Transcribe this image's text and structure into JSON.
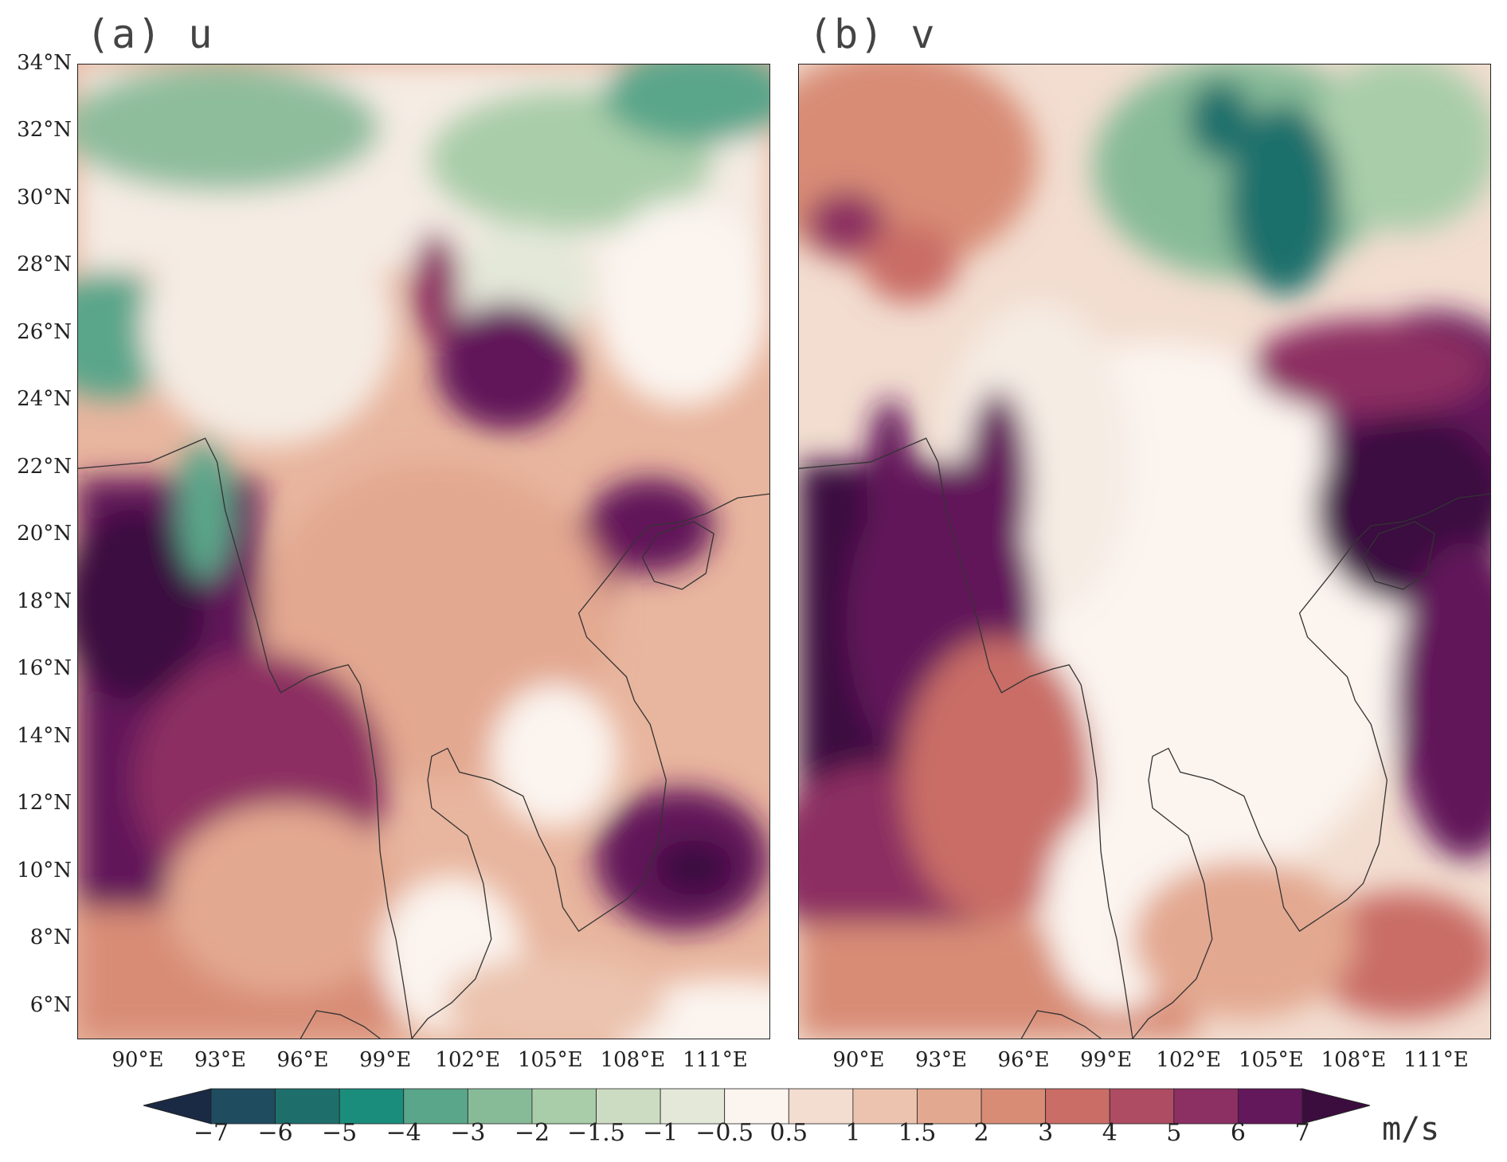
{
  "panels": [
    {
      "label": "(a) u"
    },
    {
      "label": "(b) v"
    }
  ],
  "lat_ticks": [
    "34°N",
    "32°N",
    "30°N",
    "28°N",
    "26°N",
    "24°N",
    "22°N",
    "20°N",
    "18°N",
    "16°N",
    "14°N",
    "12°N",
    "10°N",
    "8°N",
    "6°N"
  ],
  "lon_ticks": [
    "90°E",
    "93°E",
    "96°E",
    "99°E",
    "102°E",
    "105°E",
    "108°E",
    "111°E"
  ],
  "colorbar": {
    "unit": "m/s",
    "labels": [
      "−7",
      "−6",
      "−5",
      "−4",
      "−3",
      "−2",
      "−1.5",
      "−1",
      "−0.5",
      "0.5",
      "1",
      "1.5",
      "2",
      "3",
      "4",
      "5",
      "6",
      "7"
    ],
    "colors": [
      "#1a2a45",
      "#1f4c5e",
      "#1e6f6c",
      "#1b8d7c",
      "#5aa68a",
      "#87bb98",
      "#a9cda9",
      "#cbdcc3",
      "#e4e8d9",
      "#fbf4ef",
      "#f2ddd0",
      "#ebc3ae",
      "#e3a890",
      "#d88c76",
      "#c96d66",
      "#ae4c63",
      "#8c2f62",
      "#62185a",
      "#3b0d3f"
    ]
  },
  "extent": {
    "lon_min": 87.8,
    "lon_max": 113.0,
    "lat_min": 5.0,
    "lat_max": 34.0
  }
}
